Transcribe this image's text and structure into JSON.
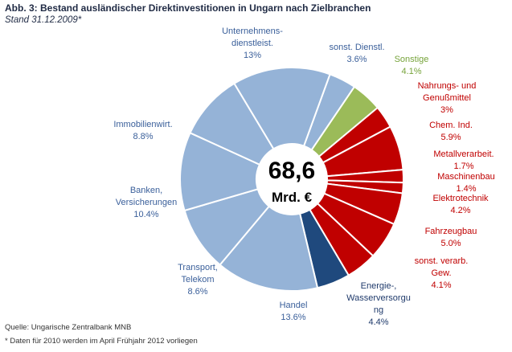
{
  "chart_data": {
    "type": "pie",
    "style": "donut",
    "title": "Abb. 3: Bestand ausländischer Direktinvestitionen in Ungarn nach Zielbranchen",
    "subtitle": "Stand 31.12.2009*",
    "center_value": "68,6",
    "center_unit": "Mrd. €",
    "slices": [
      {
        "label": [
          "sonst. Dienstl."
        ],
        "pct": "3.6%",
        "value": 3.6,
        "color": "#95b3d7",
        "text_color": "#3a5f9a"
      },
      {
        "label": [
          "Sonstige"
        ],
        "pct": "4.1%",
        "value": 4.1,
        "color": "#9bbb59",
        "text_color": "#76a33a"
      },
      {
        "label": [
          "Nahrungs- und",
          "Genußmittel"
        ],
        "pct": "3%",
        "value": 3.0,
        "color": "#c00000",
        "text_color": "#c00000"
      },
      {
        "label": [
          "Chem. Ind."
        ],
        "pct": "5.9%",
        "value": 5.9,
        "color": "#c00000",
        "text_color": "#c00000"
      },
      {
        "label": [
          "Metallverarbeit."
        ],
        "pct": "1.7%",
        "value": 1.7,
        "color": "#c00000",
        "text_color": "#c00000"
      },
      {
        "label": [
          "Maschinenbau"
        ],
        "pct": "1.4%",
        "value": 1.4,
        "color": "#c00000",
        "text_color": "#c00000"
      },
      {
        "label": [
          "Elektrotechnik"
        ],
        "pct": "4.2%",
        "value": 4.2,
        "color": "#c00000",
        "text_color": "#c00000"
      },
      {
        "label": [
          "Fahrzeugbau"
        ],
        "pct": "5.0%",
        "value": 5.0,
        "color": "#c00000",
        "text_color": "#c00000"
      },
      {
        "label": [
          "sonst. verarb.",
          "Gew."
        ],
        "pct": "4.1%",
        "value": 4.1,
        "color": "#c00000",
        "text_color": "#c00000"
      },
      {
        "label": [
          "Energie-,",
          "Wasserversorgu",
          "ng"
        ],
        "pct": "4.4%",
        "value": 4.4,
        "color": "#1f497d",
        "text_color": "#1f3a6b"
      },
      {
        "label": [
          "Handel"
        ],
        "pct": "13.6%",
        "value": 13.6,
        "color": "#95b3d7",
        "text_color": "#3a5f9a"
      },
      {
        "label": [
          "Transport,",
          "Telekom"
        ],
        "pct": "8.6%",
        "value": 8.6,
        "color": "#95b3d7",
        "text_color": "#3a5f9a"
      },
      {
        "label": [
          "Banken,",
          "Versicherungen"
        ],
        "pct": "10.4%",
        "value": 10.4,
        "color": "#95b3d7",
        "text_color": "#3a5f9a"
      },
      {
        "label": [
          "Immobilienwirt."
        ],
        "pct": "8.8%",
        "value": 8.8,
        "color": "#95b3d7",
        "text_color": "#3a5f9a"
      },
      {
        "label": [
          "Unternehmens-",
          "dienstleist."
        ],
        "pct": "13%",
        "value": 13.0,
        "color": "#95b3d7",
        "text_color": "#3a5f9a"
      }
    ]
  },
  "footer": {
    "source": "Quelle: Ungarische Zentralbank MNB",
    "note": "* Daten für 2010 werden im April Frühjahr 2012 vorliegen"
  }
}
